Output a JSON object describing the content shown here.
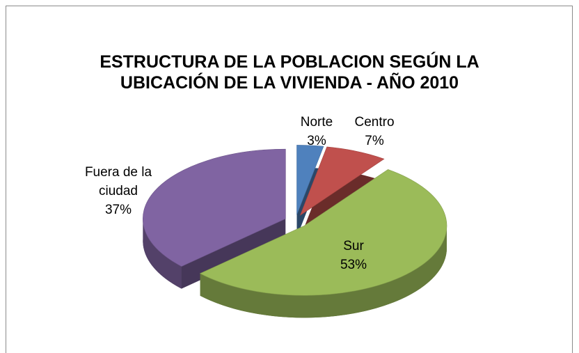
{
  "chart_data": {
    "type": "pie3d",
    "title": "ESTRUCTURA DE LA POBLACION SEGÚN LA UBICACIÓN DE LA VIVIENDA - AÑO 2010",
    "categories": [
      "Norte",
      "Centro",
      "Sur",
      "Fuera de la ciudad"
    ],
    "values": [
      3,
      7,
      53,
      37
    ],
    "value_labels": [
      "3%",
      "7%",
      "53%",
      "37%"
    ],
    "colors": [
      "#4f81bd",
      "#c0504d",
      "#9bbb59",
      "#8064a2"
    ]
  }
}
